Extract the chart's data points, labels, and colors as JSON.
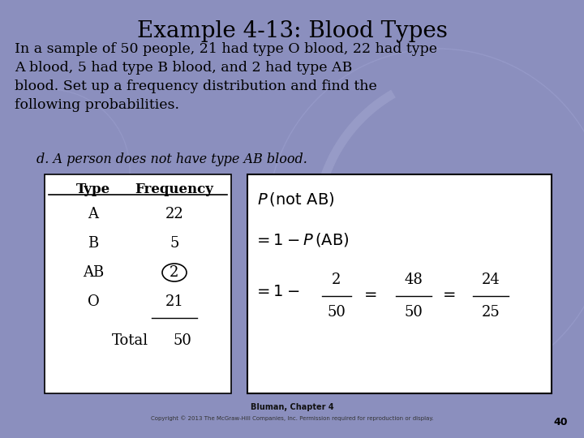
{
  "title": "Example 4-13: Blood Types",
  "body_text": "In a sample of 50 people, 21 had type O blood, 22 had type\nA blood, 5 had type B blood, and 2 had type AB\nblood. Set up a frequency distribution and find the\nfollowing probabilities.",
  "sub_text": "d. A person does not have type AB blood.",
  "table_headers": [
    "Type",
    "Frequency"
  ],
  "table_rows": [
    [
      "A",
      "22"
    ],
    [
      "B",
      "5"
    ],
    [
      "AB",
      "2"
    ],
    [
      "O",
      "21"
    ]
  ],
  "circled_row": 2,
  "bg_color": "#8b8fbe",
  "footer": "Copyright © 2013 The McGraw-Hill Companies, Inc. Permission required for reproduction or display.",
  "footer_center": "Bluman, Chapter 4",
  "page_num": "40",
  "title_fontsize": 20,
  "body_fontsize": 12.5,
  "sub_fontsize": 11.5,
  "table_fontsize": 12,
  "formula_fontsize": 13
}
